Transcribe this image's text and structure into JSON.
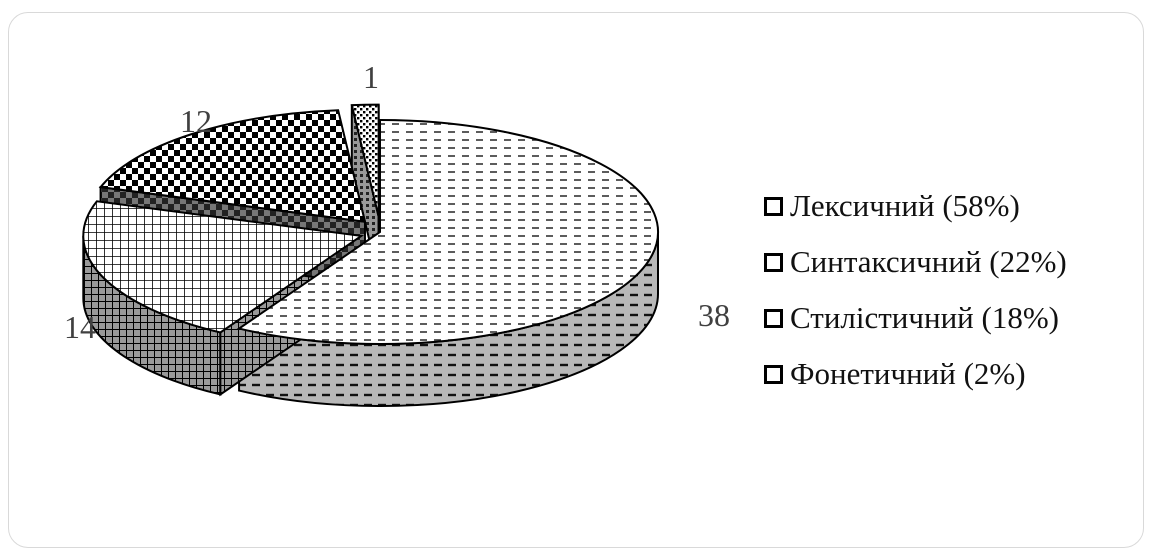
{
  "chart_data": {
    "type": "pie",
    "title": "",
    "slices": [
      {
        "name": "Лексичний (58%)",
        "value": 38,
        "label": "38",
        "pattern": "dash"
      },
      {
        "name": "Синтаксичний (22%)",
        "value": 14,
        "label": "14",
        "pattern": "grid"
      },
      {
        "name": "Стилістичний (18%)",
        "value": 12,
        "label": "12",
        "pattern": "checker"
      },
      {
        "name": "Фонетичний (2%)",
        "value": 1,
        "label": "1",
        "pattern": "dots"
      }
    ],
    "legend_position": "right",
    "style": "3d-exploded"
  },
  "colors": {
    "ink": "#000000",
    "label": "#404040",
    "border": "#d9d9d9"
  }
}
